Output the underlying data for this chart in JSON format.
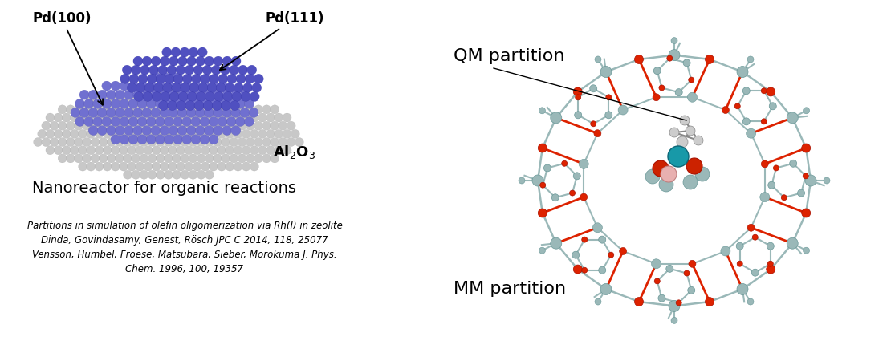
{
  "background_color": "#ffffff",
  "nanoreactor_label": "Nanoreactor for organic reactions",
  "nanoreactor_label_fontsize": 14,
  "pd100_label": "Pd(100)",
  "pd111_label": "Pd(111)",
  "al2o3_label": "Al$_2$O$_3$",
  "citation_lines": [
    "Partitions in simulation of olefin oligomerization via Rh(I) in zeolite",
    "Dinda, Govindasamy, Genest, Rösch JPC C 2014, 118, 25077",
    "Vensson, Humbel, Froese, Matsubara, Sieber, Morokuma J. Phys.",
    "Chem. 1996, 100, 19357"
  ],
  "citation_fontsize": 8.5,
  "qm_label": "QM partition",
  "qm_fontsize": 16,
  "mm_label": "MM partition",
  "mm_fontsize": 16,
  "grey_sphere_color": "#c8c8c8",
  "grey_sphere_edge": "#a0a0a0",
  "blue_sphere_color": "#7070d0",
  "blue_sphere_edge": "#4848aa",
  "darkblue_sphere_color": "#5050c0",
  "darkblue_sphere_edge": "#2828a0"
}
